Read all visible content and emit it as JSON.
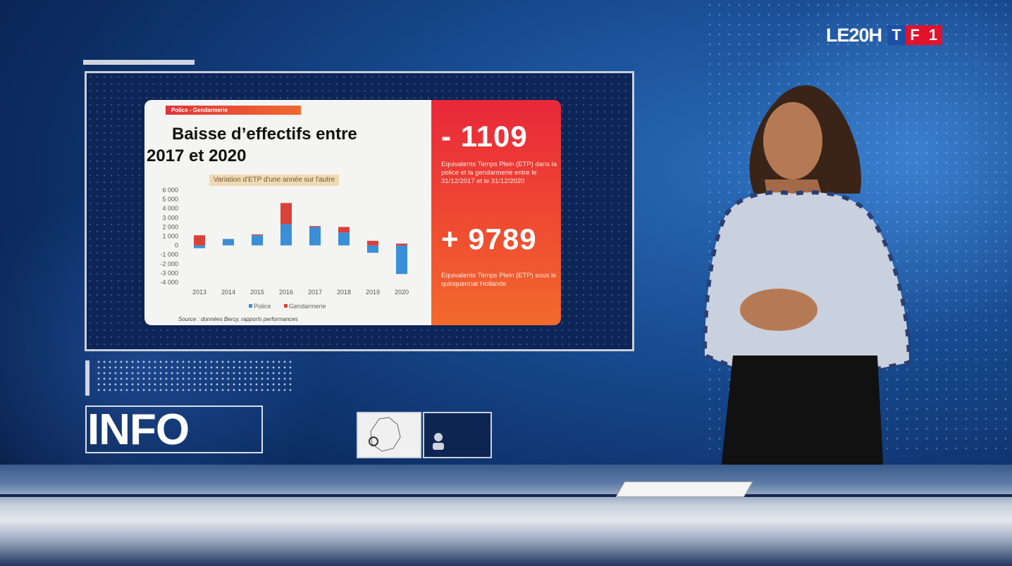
{
  "logo": {
    "show": "LE20H",
    "channel": [
      "T",
      "F",
      "1"
    ],
    "channel_colors": [
      "#1d4fa5",
      "#e3112b",
      "#e3112b"
    ]
  },
  "graphic": {
    "tag": "Police - Gendarmerie",
    "title_line1": "Baisse d’effectifs entre",
    "title_line2": "2017 et 2020",
    "subtitle": "Variation d'ETP d'une année sur l'autre",
    "source": "Source : données Bercy, rapports performances",
    "stat1": {
      "value": "- 1109",
      "text": "Equivalents Temps Plein (ETP) dans la police et la gendarmerie entre le 31/12/2017 et le 31/12/2020"
    },
    "stat2": {
      "value": "+ 9789",
      "text": "Equivalents Temps Plein (ETP) sous le quinquennat Hollande"
    }
  },
  "info_label": "INFO",
  "chart_data": {
    "type": "bar",
    "stacked": true,
    "categories": [
      "2013",
      "2014",
      "2015",
      "2016",
      "2017",
      "2018",
      "2019",
      "2020"
    ],
    "series": [
      {
        "name": "Police",
        "color": "#3a8fd6",
        "values": [
          -300,
          700,
          1100,
          2300,
          2000,
          1400,
          -800,
          -3100
        ]
      },
      {
        "name": "Gendarmerie",
        "color": "#d9413a",
        "values": [
          1100,
          0,
          100,
          2300,
          100,
          600,
          500,
          200
        ]
      }
    ],
    "yticks": [
      "6 000",
      "5 000",
      "4 000",
      "3 000",
      "2 000",
      "1 000",
      "0",
      "-1 000",
      "-2 000",
      "-3 000",
      "-4 000"
    ],
    "ylim": [
      -4000,
      6000
    ],
    "legend_position": "bottom"
  }
}
